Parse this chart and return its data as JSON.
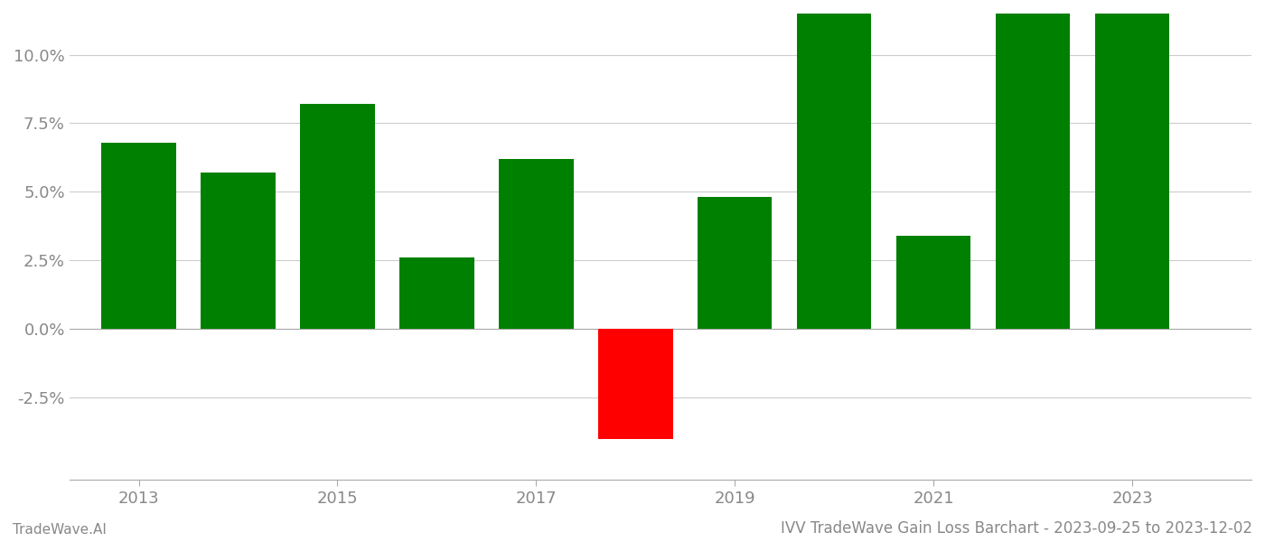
{
  "years": [
    2013,
    2014,
    2015,
    2016,
    2017,
    2018,
    2019,
    2020,
    2021,
    2022,
    2023
  ],
  "values": [
    0.068,
    0.057,
    0.082,
    0.026,
    0.062,
    -0.04,
    0.048,
    0.115,
    0.034,
    0.117,
    0.117
  ],
  "colors": [
    "#008000",
    "#008000",
    "#008000",
    "#008000",
    "#008000",
    "#ff0000",
    "#008000",
    "#008000",
    "#008000",
    "#008000",
    "#008000"
  ],
  "ylim": [
    -0.055,
    0.115
  ],
  "yticks": [
    -0.025,
    0.0,
    0.025,
    0.05,
    0.075,
    0.1
  ],
  "xlim": [
    2012.3,
    2024.2
  ],
  "xticks": [
    2013,
    2015,
    2017,
    2019,
    2021,
    2023
  ],
  "title": "IVV TradeWave Gain Loss Barchart - 2023-09-25 to 2023-12-02",
  "footer_left": "TradeWave.AI",
  "background_color": "#ffffff",
  "grid_color": "#cccccc",
  "bar_width": 0.75,
  "tick_fontsize": 13,
  "title_fontsize": 12,
  "footer_fontsize": 11
}
